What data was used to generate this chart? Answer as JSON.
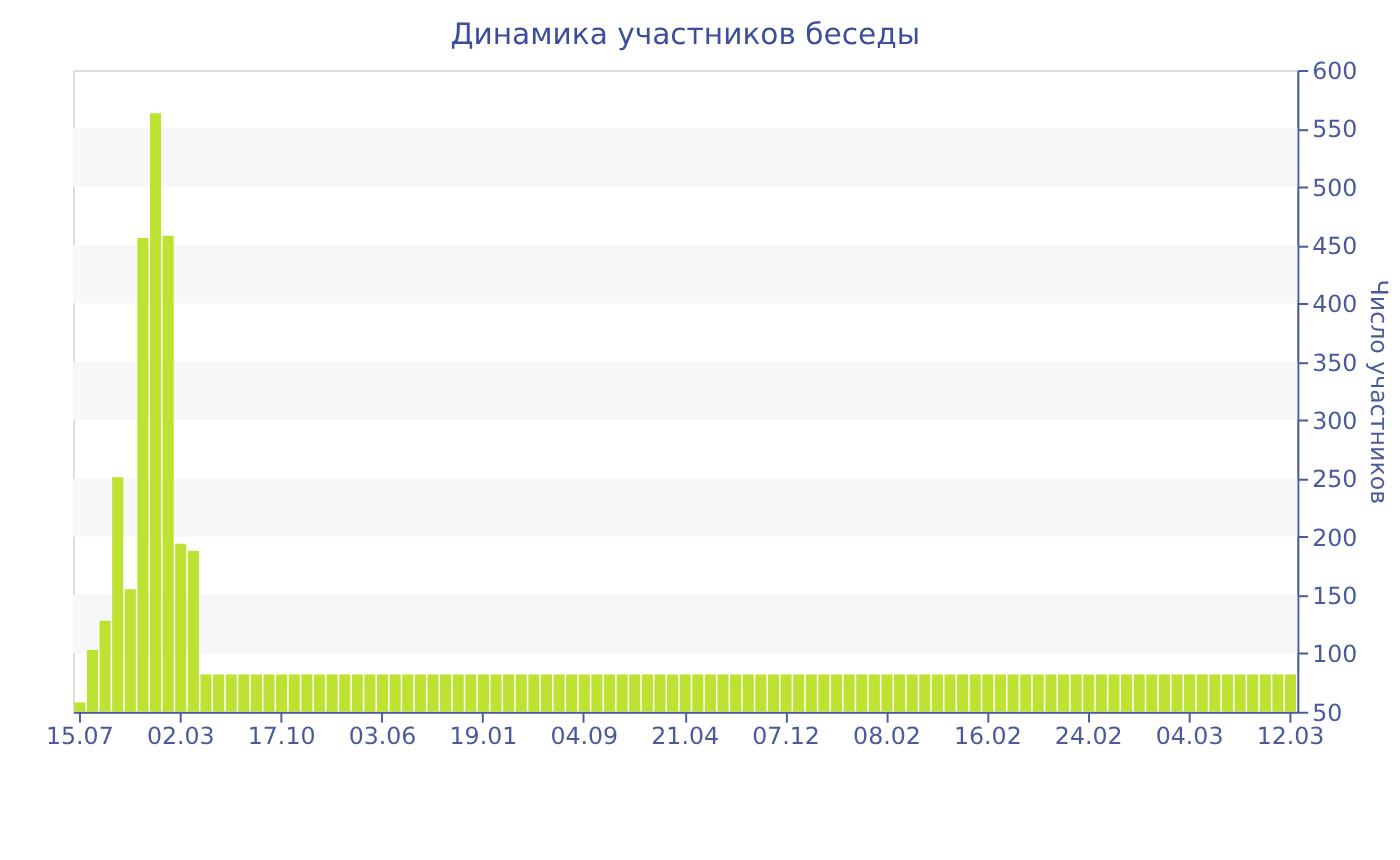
{
  "chart_data": {
    "type": "bar",
    "title": "Динамика участников беседы",
    "ylabel": "Число участников",
    "categories": [
      "15.07",
      null,
      null,
      null,
      null,
      null,
      null,
      null,
      "02.03",
      null,
      null,
      null,
      null,
      null,
      null,
      null,
      "17.10",
      null,
      null,
      null,
      null,
      null,
      null,
      null,
      "03.06",
      null,
      null,
      null,
      null,
      null,
      null,
      null,
      "19.01",
      null,
      null,
      null,
      null,
      null,
      null,
      null,
      "04.09",
      null,
      null,
      null,
      null,
      null,
      null,
      null,
      "21.04",
      null,
      null,
      null,
      null,
      null,
      null,
      null,
      "07.12",
      null,
      null,
      null,
      null,
      null,
      null,
      null,
      "08.02",
      null,
      null,
      null,
      null,
      null,
      null,
      null,
      "16.02",
      null,
      null,
      null,
      null,
      null,
      null,
      null,
      "24.02",
      null,
      null,
      null,
      null,
      null,
      null,
      null,
      "04.03",
      null,
      null,
      null,
      null,
      null,
      null,
      null,
      "12.03"
    ],
    "values": [
      58,
      103,
      128,
      251,
      155,
      456,
      563,
      458,
      194,
      188,
      82,
      82,
      82,
      82,
      82,
      82,
      82,
      82,
      82,
      82,
      82,
      82,
      82,
      82,
      82,
      82,
      82,
      82,
      82,
      82,
      82,
      82,
      82,
      82,
      82,
      82,
      82,
      82,
      82,
      82,
      82,
      82,
      82,
      82,
      82,
      82,
      82,
      82,
      82,
      82,
      82,
      82,
      82,
      82,
      82,
      82,
      82,
      82,
      82,
      82,
      82,
      82,
      82,
      82,
      82,
      82,
      82,
      82,
      82,
      82,
      82,
      82,
      82,
      82,
      82,
      82,
      82,
      82,
      82,
      82,
      82,
      82,
      82,
      82,
      82,
      82,
      82,
      82,
      82,
      82,
      82,
      82,
      82,
      82,
      82,
      82,
      82
    ],
    "color": "#bde232",
    "ylim": [
      50,
      600
    ],
    "yticks": [
      50,
      100,
      150,
      200,
      250,
      300,
      350,
      400,
      450,
      500,
      550,
      600
    ],
    "bands": [
      {
        "axis": "y",
        "from": 100,
        "to": 150,
        "color": "#f7f7f7"
      },
      {
        "axis": "y",
        "from": 200,
        "to": 250,
        "color": "#f7f7f7"
      },
      {
        "axis": "y",
        "from": 300,
        "to": 350,
        "color": "#f7f7f7"
      },
      {
        "axis": "y",
        "from": 400,
        "to": 450,
        "color": "#f7f7f7"
      },
      {
        "axis": "y",
        "from": 500,
        "to": 550,
        "color": "#f7f7f7"
      }
    ]
  }
}
